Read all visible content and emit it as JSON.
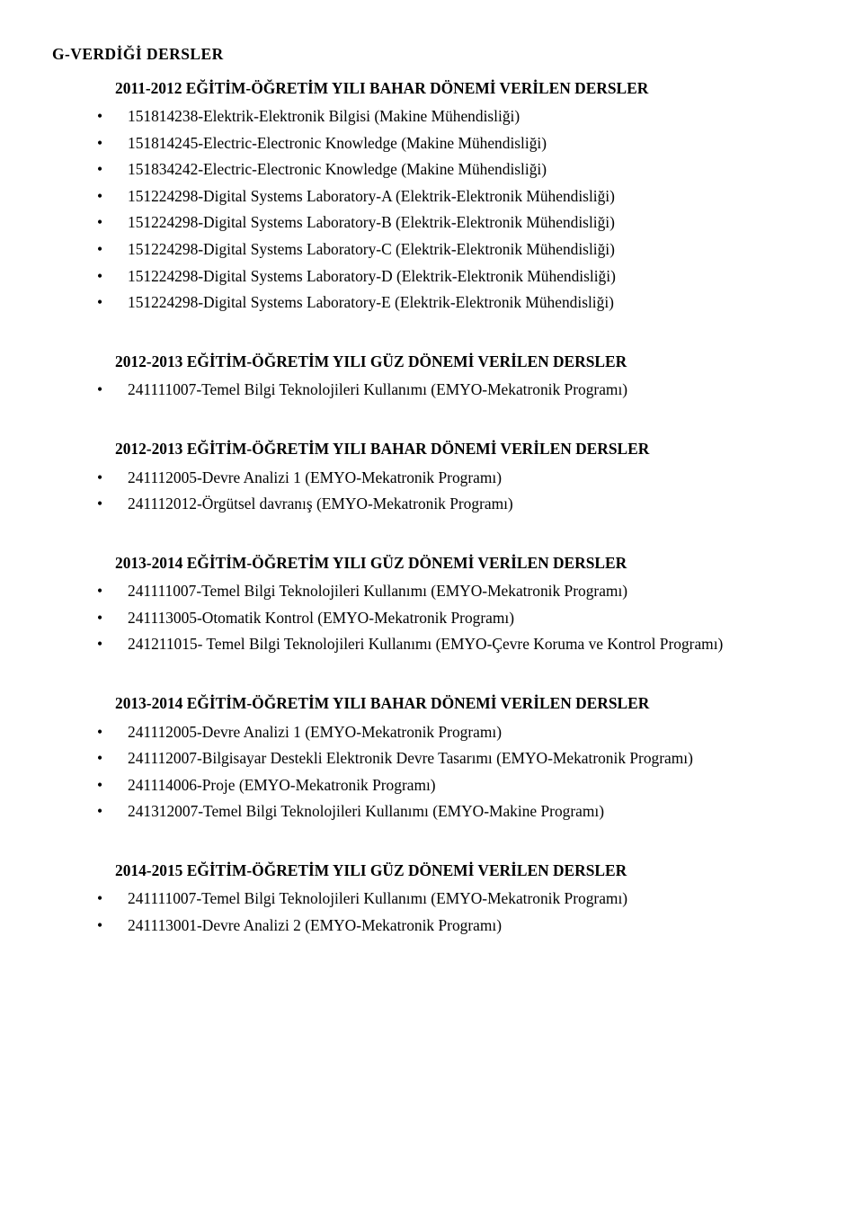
{
  "title": "G-VERDİĞİ DERSLER",
  "sections": [
    {
      "heading": "2011-2012 EĞİTİM-ÖĞRETİM YILI BAHAR DÖNEMİ VERİLEN DERSLER",
      "items": [
        "151814238-Elektrik-Elektronik Bilgisi (Makine Mühendisliği)",
        "151814245-Electric-Electronic Knowledge (Makine Mühendisliği)",
        "151834242-Electric-Electronic Knowledge (Makine Mühendisliği)",
        "151224298-Digital Systems Laboratory-A (Elektrik-Elektronik Mühendisliği)",
        "151224298-Digital Systems Laboratory-B (Elektrik-Elektronik Mühendisliği)",
        "151224298-Digital Systems Laboratory-C (Elektrik-Elektronik Mühendisliği)",
        "151224298-Digital Systems Laboratory-D (Elektrik-Elektronik Mühendisliği)",
        "151224298-Digital Systems Laboratory-E (Elektrik-Elektronik Mühendisliği)"
      ]
    },
    {
      "heading": "2012-2013 EĞİTİM-ÖĞRETİM YILI GÜZ DÖNEMİ VERİLEN DERSLER",
      "items": [
        "241111007-Temel Bilgi Teknolojileri Kullanımı (EMYO-Mekatronik Programı)"
      ]
    },
    {
      "heading": "2012-2013 EĞİTİM-ÖĞRETİM YILI BAHAR DÖNEMİ VERİLEN DERSLER",
      "items": [
        "241112005-Devre Analizi 1 (EMYO-Mekatronik Programı)",
        "241112012-Örgütsel davranış (EMYO-Mekatronik Programı)"
      ]
    },
    {
      "heading": "2013-2014 EĞİTİM-ÖĞRETİM YILI GÜZ DÖNEMİ VERİLEN DERSLER",
      "items": [
        "241111007-Temel Bilgi Teknolojileri Kullanımı (EMYO-Mekatronik Programı)",
        "241113005-Otomatik Kontrol (EMYO-Mekatronik Programı)",
        "241211015- Temel Bilgi Teknolojileri Kullanımı (EMYO-Çevre Koruma ve Kontrol Programı)"
      ]
    },
    {
      "heading": "2013-2014 EĞİTİM-ÖĞRETİM YILI BAHAR DÖNEMİ VERİLEN DERSLER",
      "items": [
        "241112005-Devre Analizi 1 (EMYO-Mekatronik Programı)",
        "241112007-Bilgisayar Destekli Elektronik Devre Tasarımı (EMYO-Mekatronik Programı)",
        "241114006-Proje (EMYO-Mekatronik Programı)",
        "241312007-Temel Bilgi Teknolojileri Kullanımı (EMYO-Makine Programı)"
      ]
    },
    {
      "heading": "2014-2015 EĞİTİM-ÖĞRETİM YILI GÜZ DÖNEMİ VERİLEN DERSLER",
      "items": [
        "241111007-Temel Bilgi Teknolojileri Kullanımı (EMYO-Mekatronik Programı)",
        "241113001-Devre Analizi 2 (EMYO-Mekatronik Programı)"
      ]
    }
  ]
}
